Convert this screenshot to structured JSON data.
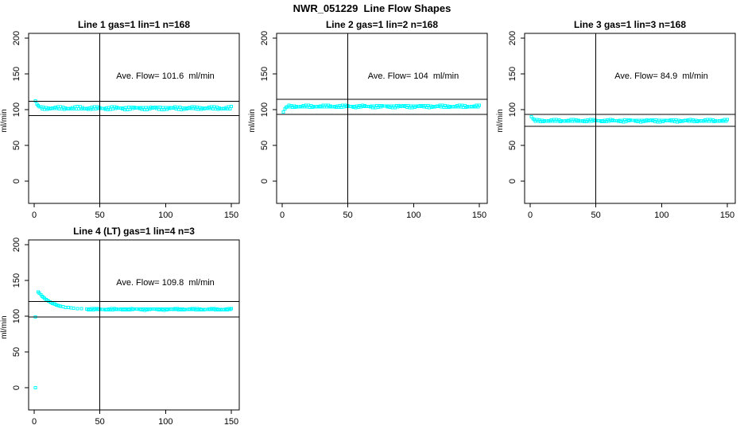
{
  "figure_title": "NWR_051229  Line Flow Shapes",
  "chart_data": {
    "type": "scatter",
    "point_color": "#00ffff",
    "axis_color": "#000000",
    "ylabel": "ml/min",
    "x_ticks": [
      0,
      50,
      100,
      150
    ],
    "y_ticks": [
      0,
      50,
      100,
      150,
      200
    ],
    "xlim": [
      -4,
      156
    ],
    "ylim": [
      0,
      206
    ],
    "vline_x": 50,
    "grid": false,
    "legend": "none",
    "annotation_xy": [
      100,
      150
    ],
    "panels": [
      {
        "title": "Line 1 gas=1 lin=1 n=168",
        "annotation": "Ave. Flow= 101.6  ml/min",
        "ave_flow": 101.6,
        "n": 168,
        "hlines": [
          111.8,
          91.4
        ],
        "points": [
          [
            1,
            112
          ],
          [
            2,
            108
          ],
          [
            3,
            105.5
          ],
          [
            4,
            104
          ]
        ],
        "steady": {
          "x_from": 5,
          "x_to": 150,
          "x_step": 1,
          "value": 102,
          "jitter": 1.5
        }
      },
      {
        "title": "Line 2 gas=1 lin=2 n=168",
        "annotation": "Ave. Flow= 104  ml/min",
        "ave_flow": 104,
        "n": 168,
        "hlines": [
          114.4,
          93.6
        ],
        "points": [
          [
            1,
            96.5
          ],
          [
            2,
            101
          ],
          [
            3,
            103.5
          ]
        ],
        "steady": {
          "x_from": 4,
          "x_to": 150,
          "x_step": 1,
          "value": 104.5,
          "jitter": 1.2
        }
      },
      {
        "title": "Line 3 gas=1 lin=3 n=168",
        "annotation": "Ave. Flow= 84.9  ml/min",
        "ave_flow": 84.9,
        "n": 168,
        "hlines": [
          93.4,
          76.4
        ],
        "points": [
          [
            1,
            90
          ],
          [
            2,
            87.5
          ],
          [
            3,
            86
          ]
        ],
        "steady": {
          "x_from": 4,
          "x_to": 150,
          "x_step": 1,
          "value": 84.5,
          "jitter": 1.1
        }
      },
      {
        "title": "Line 4 (LT) gas=1 lin=4 n=3",
        "annotation": "Ave. Flow= 109.8  ml/min",
        "ave_flow": 109.8,
        "n": 3,
        "hlines": [
          120.8,
          98.8
        ],
        "points": [
          [
            1,
            0
          ],
          [
            1,
            99
          ],
          [
            3,
            134
          ],
          [
            4,
            132
          ],
          [
            5,
            130
          ],
          [
            6,
            128
          ],
          [
            7,
            126.5
          ],
          [
            8,
            125
          ],
          [
            9,
            123.5
          ],
          [
            10,
            122
          ],
          [
            11,
            121
          ],
          [
            12,
            120
          ],
          [
            13,
            119
          ],
          [
            14,
            118
          ],
          [
            15,
            117.2
          ],
          [
            16,
            116.5
          ],
          [
            17,
            115.8
          ],
          [
            18,
            115.2
          ],
          [
            19,
            114.6
          ],
          [
            20,
            114
          ],
          [
            22,
            113.2
          ],
          [
            24,
            112.5
          ],
          [
            26,
            112
          ],
          [
            28,
            111.6
          ],
          [
            30,
            111.2
          ],
          [
            33,
            110.8
          ],
          [
            36,
            110.5
          ],
          [
            40,
            110.2
          ]
        ],
        "steady": {
          "x_from": 41,
          "x_to": 150,
          "x_step": 1,
          "value": 109.6,
          "jitter": 0.7
        }
      }
    ]
  }
}
